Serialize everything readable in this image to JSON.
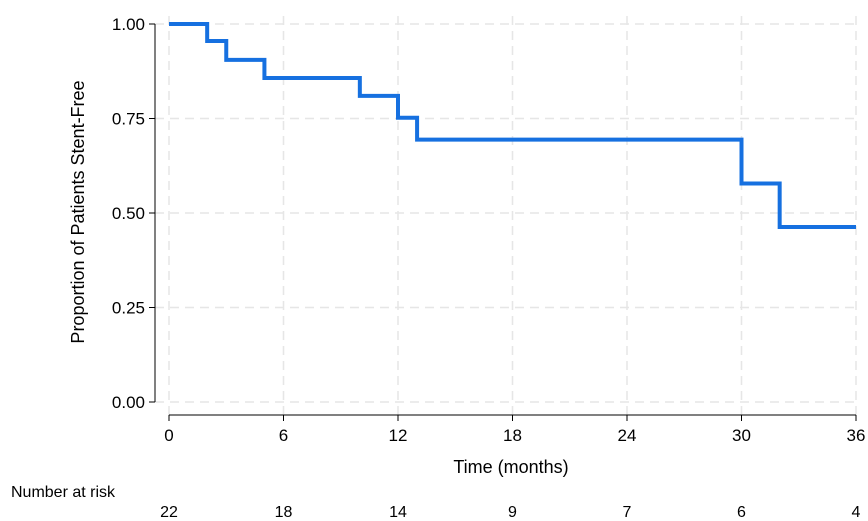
{
  "chart_data": {
    "type": "line",
    "subtype": "step",
    "xlabel": "Time (months)",
    "ylabel": "Proportion of Patients Stent-Free",
    "xlim": [
      0,
      36
    ],
    "ylim": [
      0,
      1
    ],
    "x_ticks": [
      0,
      6,
      12,
      18,
      24,
      30,
      36
    ],
    "y_ticks": [
      0.0,
      0.25,
      0.5,
      0.75,
      1.0
    ],
    "y_tick_labels": [
      "0.00",
      "0.25",
      "0.50",
      "0.75",
      "1.00"
    ],
    "grid": true,
    "color": "#1670e0",
    "series": [
      {
        "x": [
          0,
          2,
          3,
          5,
          10,
          12,
          13,
          30,
          32,
          36
        ],
        "y": [
          1.0,
          0.955,
          0.905,
          0.857,
          0.81,
          0.752,
          0.694,
          0.578,
          0.463,
          0.463
        ]
      }
    ],
    "risk_table": {
      "title": "Number at risk",
      "times": [
        0,
        6,
        12,
        18,
        24,
        30,
        36
      ],
      "counts": [
        "22",
        "18",
        "14",
        "9",
        "7",
        "6",
        "4"
      ]
    }
  }
}
